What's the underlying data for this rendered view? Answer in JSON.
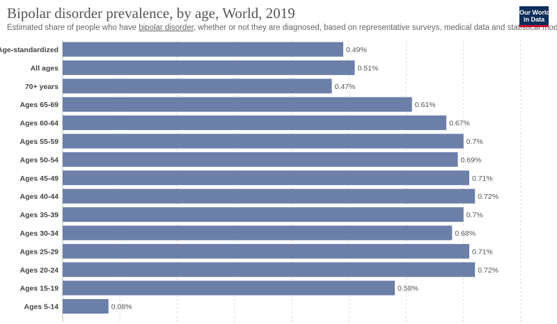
{
  "header": {
    "title": "Bipolar disorder prevalence, by age, World, 2019",
    "subtitle_pre": "Estimated share of people who have ",
    "subtitle_link": "bipolar disorder",
    "subtitle_post": ", whether or not they are diagnosed, based on representative surveys, medical data and statistical modelling."
  },
  "logo": {
    "line1": "Our World",
    "line2": "in Data"
  },
  "colors": {
    "bar": "#6b7fa8"
  },
  "chart_data": {
    "type": "bar",
    "orientation": "horizontal",
    "title": "Bipolar disorder prevalence, by age, World, 2019",
    "categories": [
      "Age-standardized",
      "All ages",
      "70+ years",
      "Ages 65-69",
      "Ages 60-64",
      "Ages 55-59",
      "Ages 50-54",
      "Ages 45-49",
      "Ages 40-44",
      "Ages 35-39",
      "Ages 30-34",
      "Ages 25-29",
      "Ages 20-24",
      "Ages 15-19",
      "Ages 5-14"
    ],
    "values": [
      0.49,
      0.51,
      0.47,
      0.61,
      0.67,
      0.7,
      0.69,
      0.71,
      0.72,
      0.7,
      0.68,
      0.71,
      0.72,
      0.58,
      0.08
    ],
    "value_labels": [
      "0.49%",
      "0.51%",
      "0.47%",
      "0.61%",
      "0.67%",
      "0.7%",
      "0.69%",
      "0.71%",
      "0.72%",
      "0.7%",
      "0.68%",
      "0.71%",
      "0.72%",
      "0.58%",
      "0.08%"
    ],
    "xlim": [
      0,
      0.8
    ],
    "grid": true
  }
}
